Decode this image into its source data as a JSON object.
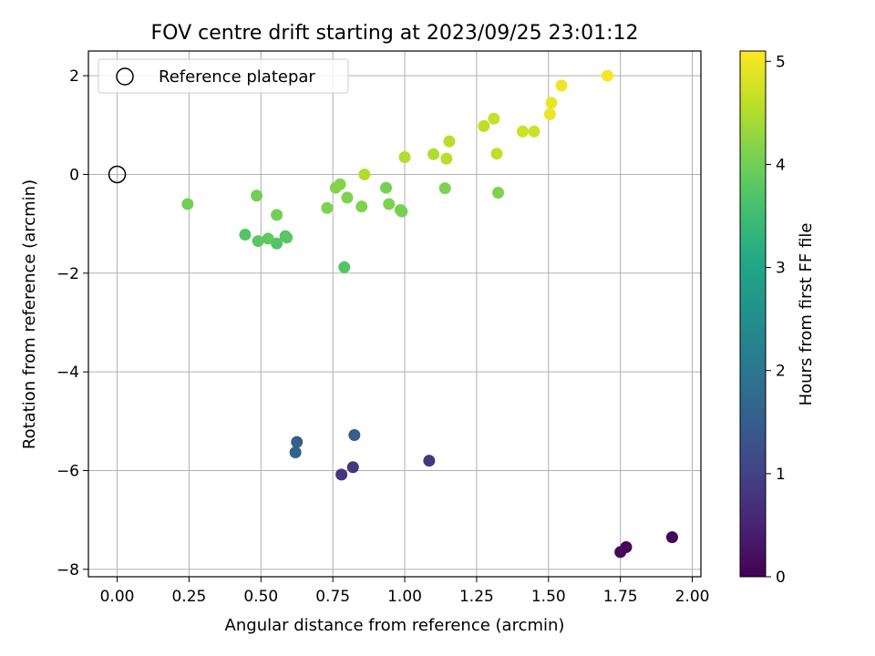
{
  "chart_data": {
    "type": "scatter",
    "title": "FOV centre drift starting at 2023/09/25 23:01:12",
    "xlabel": "Angular distance from reference (arcmin)",
    "ylabel": "Rotation from reference (arcmin)",
    "xlim": [
      -0.1,
      2.03
    ],
    "ylim": [
      -8.15,
      2.5
    ],
    "xticks": [
      0.0,
      0.25,
      0.5,
      0.75,
      1.0,
      1.25,
      1.5,
      1.75,
      2.0
    ],
    "xtick_labels": [
      "0.00",
      "0.25",
      "0.50",
      "0.75",
      "1.00",
      "1.25",
      "1.50",
      "1.75",
      "2.00"
    ],
    "yticks": [
      2,
      0,
      -2,
      -4,
      -6,
      -8
    ],
    "ytick_labels": [
      "2",
      "0",
      "−2",
      "−4",
      "−6",
      "−8"
    ],
    "grid": true,
    "legend": {
      "position": "top-left",
      "label": "Reference platepar"
    },
    "reference_point": {
      "x": 0.0,
      "y": 0.0,
      "marker": "open-circle"
    },
    "colorbar": {
      "label": "Hours from first FF file",
      "colormap": "viridis",
      "range": [
        0,
        5.1
      ],
      "ticks": [
        0,
        1,
        2,
        3,
        4,
        5
      ],
      "tick_labels": [
        "0",
        "1",
        "2",
        "3",
        "4",
        "5"
      ]
    },
    "points": [
      {
        "x": 1.93,
        "y": -7.35,
        "hours": 0.05
      },
      {
        "x": 1.77,
        "y": -7.55,
        "hours": 0.07
      },
      {
        "x": 1.75,
        "y": -7.65,
        "hours": 0.09
      },
      {
        "x": 1.085,
        "y": -5.8,
        "hours": 0.85
      },
      {
        "x": 0.82,
        "y": -5.93,
        "hours": 0.8
      },
      {
        "x": 0.78,
        "y": -6.08,
        "hours": 0.8
      },
      {
        "x": 0.825,
        "y": -5.28,
        "hours": 1.5
      },
      {
        "x": 0.625,
        "y": -5.42,
        "hours": 1.55
      },
      {
        "x": 0.62,
        "y": -5.63,
        "hours": 1.6
      },
      {
        "x": 0.79,
        "y": -1.88,
        "hours": 3.7
      },
      {
        "x": 0.445,
        "y": -1.22,
        "hours": 3.7
      },
      {
        "x": 0.49,
        "y": -1.35,
        "hours": 3.8
      },
      {
        "x": 0.525,
        "y": -1.3,
        "hours": 3.85
      },
      {
        "x": 0.555,
        "y": -1.4,
        "hours": 3.7
      },
      {
        "x": 0.585,
        "y": -1.25,
        "hours": 3.75
      },
      {
        "x": 0.59,
        "y": -1.28,
        "hours": 3.8
      },
      {
        "x": 0.245,
        "y": -0.6,
        "hours": 4.0
      },
      {
        "x": 0.485,
        "y": -0.43,
        "hours": 4.0
      },
      {
        "x": 0.555,
        "y": -0.82,
        "hours": 4.0
      },
      {
        "x": 0.73,
        "y": -0.68,
        "hours": 4.1
      },
      {
        "x": 0.76,
        "y": -0.27,
        "hours": 4.15
      },
      {
        "x": 0.775,
        "y": -0.2,
        "hours": 4.15
      },
      {
        "x": 0.8,
        "y": -0.47,
        "hours": 4.1
      },
      {
        "x": 0.85,
        "y": -0.65,
        "hours": 4.1
      },
      {
        "x": 0.935,
        "y": -0.27,
        "hours": 4.05
      },
      {
        "x": 0.945,
        "y": -0.6,
        "hours": 4.1
      },
      {
        "x": 0.985,
        "y": -0.72,
        "hours": 4.1
      },
      {
        "x": 0.99,
        "y": -0.75,
        "hours": 4.05
      },
      {
        "x": 1.14,
        "y": -0.28,
        "hours": 4.1
      },
      {
        "x": 1.325,
        "y": -0.37,
        "hours": 4.1
      },
      {
        "x": 0.86,
        "y": 0.0,
        "hours": 4.5
      },
      {
        "x": 1.0,
        "y": 0.35,
        "hours": 4.5
      },
      {
        "x": 1.1,
        "y": 0.41,
        "hours": 4.5
      },
      {
        "x": 1.145,
        "y": 0.32,
        "hours": 4.55
      },
      {
        "x": 1.155,
        "y": 0.67,
        "hours": 4.55
      },
      {
        "x": 1.275,
        "y": 0.98,
        "hours": 4.6
      },
      {
        "x": 1.31,
        "y": 1.13,
        "hours": 4.65
      },
      {
        "x": 1.32,
        "y": 0.42,
        "hours": 4.6
      },
      {
        "x": 1.41,
        "y": 0.87,
        "hours": 4.7
      },
      {
        "x": 1.45,
        "y": 0.87,
        "hours": 4.7
      },
      {
        "x": 1.505,
        "y": 1.22,
        "hours": 4.95
      },
      {
        "x": 1.51,
        "y": 1.45,
        "hours": 4.95
      },
      {
        "x": 1.545,
        "y": 1.8,
        "hours": 5.0
      },
      {
        "x": 1.705,
        "y": 2.0,
        "hours": 5.05
      }
    ]
  }
}
